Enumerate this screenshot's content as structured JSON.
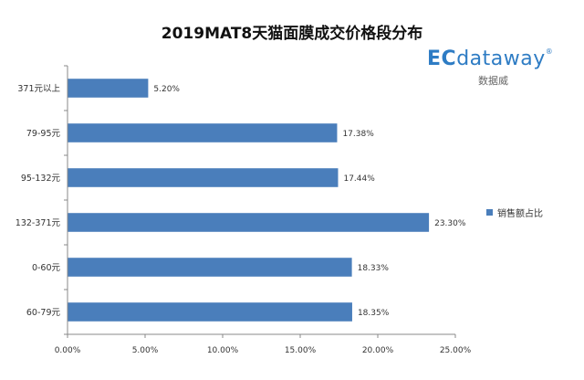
{
  "chart_data": {
    "type": "bar",
    "orientation": "horizontal",
    "title": "2019MAT8天猫面膜成交价格段分布",
    "categories": [
      "371元以上",
      "79-95元",
      "95-132元",
      "132-371元",
      "0-60元",
      "60-79元"
    ],
    "series": [
      {
        "name": "销售额占比",
        "values": [
          5.2,
          17.38,
          17.44,
          23.3,
          18.33,
          18.35
        ],
        "data_labels": [
          "5.20%",
          "17.38%",
          "17.44%",
          "23.30%",
          "18.33%",
          "18.35%"
        ],
        "color": "#4a7ebb"
      }
    ],
    "xlim": [
      0,
      25
    ],
    "xticks": [
      "0.00%",
      "5.00%",
      "10.00%",
      "15.00%",
      "20.00%",
      "25.00%"
    ],
    "grid": false,
    "legend_position": "right"
  },
  "logo": {
    "mark_ec": "EC",
    "mark_rest": "dataway",
    "reg": "®",
    "sub": "数据威"
  }
}
